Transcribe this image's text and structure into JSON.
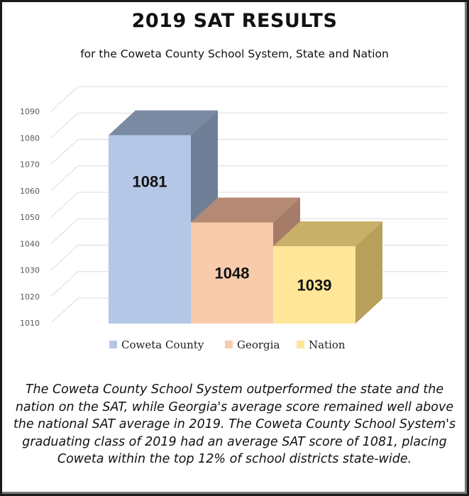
{
  "chart_data": {
    "type": "bar",
    "title": "2019 SAT RESULTS",
    "subtitle": "for the Coweta County School System, State and Nation",
    "categories": [
      "Coweta County",
      "Georgia",
      "Nation"
    ],
    "values": [
      1081,
      1048,
      1039
    ],
    "data_labels": [
      "1081",
      "1048",
      "1039"
    ],
    "yticks": [
      1010,
      1020,
      1030,
      1040,
      1050,
      1060,
      1070,
      1080,
      1090
    ],
    "ylim": [
      1010,
      1090
    ],
    "grid": true,
    "three_d": true,
    "legend_position": "bottom",
    "legend": [
      "Coweta County",
      "Georgia",
      "Nation"
    ],
    "colors": {
      "Coweta County": {
        "front": "#b4c7e7",
        "top": "#7a8aa3",
        "side": "#6f7f98"
      },
      "Georgia": {
        "front": "#f8cbad",
        "top": "#b58a74",
        "side": "#a67c68"
      },
      "Nation": {
        "front": "#ffe699",
        "top": "#c9b069",
        "side": "#b9a05a"
      }
    }
  },
  "caption": "The Coweta County School System outperformed the state and the nation on the SAT, while Georgia's average score remained well above the national SAT average in 2019.  The Coweta County School System's graduating class of 2019 had an average SAT score of 1081, placing Coweta within the top 12% of school districts state-wide."
}
